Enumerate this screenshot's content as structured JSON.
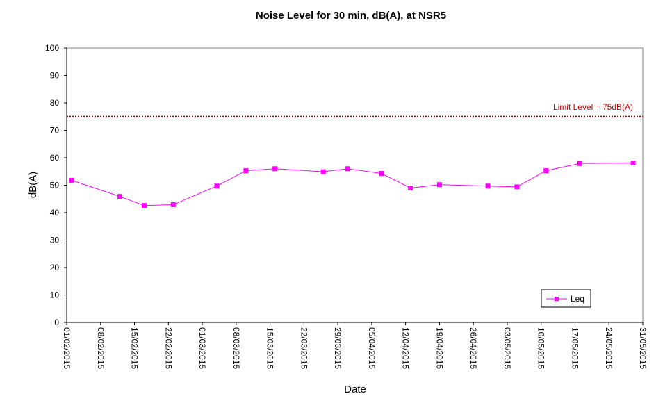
{
  "chart_data": {
    "type": "line",
    "title": "Noise Level for 30 min, dB(A), at NSR5",
    "xlabel": "Date",
    "ylabel": "dB(A)",
    "ylim": [
      0,
      100
    ],
    "yticks": [
      0,
      10,
      20,
      30,
      40,
      50,
      60,
      70,
      80,
      90,
      100
    ],
    "xlim": [
      "01/02/2015",
      "31/05/2015"
    ],
    "xticks": [
      "01/02/2015",
      "08/02/2015",
      "15/02/2015",
      "22/02/2015",
      "01/03/2015",
      "08/03/2015",
      "15/03/2015",
      "22/03/2015",
      "29/03/2015",
      "05/04/2015",
      "12/04/2015",
      "19/04/2015",
      "26/04/2015",
      "03/05/2015",
      "10/05/2015",
      "17/05/2015",
      "24/05/2015",
      "31/05/2015"
    ],
    "grid": false,
    "legend_position": "bottom-right",
    "series": [
      {
        "name": "Leq",
        "color": "#ff00ff",
        "marker": "square",
        "points": [
          {
            "x": "02/02/2015",
            "y": 51.8
          },
          {
            "x": "12/02/2015",
            "y": 45.9
          },
          {
            "x": "17/02/2015",
            "y": 42.6
          },
          {
            "x": "23/02/2015",
            "y": 42.9
          },
          {
            "x": "04/03/2015",
            "y": 49.7
          },
          {
            "x": "10/03/2015",
            "y": 55.3
          },
          {
            "x": "16/03/2015",
            "y": 56.0
          },
          {
            "x": "26/03/2015",
            "y": 54.9
          },
          {
            "x": "31/03/2015",
            "y": 56.0
          },
          {
            "x": "07/04/2015",
            "y": 54.3
          },
          {
            "x": "13/04/2015",
            "y": 49.0
          },
          {
            "x": "19/04/2015",
            "y": 50.2
          },
          {
            "x": "29/04/2015",
            "y": 49.7
          },
          {
            "x": "05/05/2015",
            "y": 49.4
          },
          {
            "x": "11/05/2015",
            "y": 55.3
          },
          {
            "x": "18/05/2015",
            "y": 57.9
          },
          {
            "x": "29/05/2015",
            "y": 58.1
          }
        ]
      }
    ],
    "reference_lines": [
      {
        "y": 75,
        "label": "Limit Level  = 75dB(A)",
        "color": "#990000",
        "style": "dotted"
      }
    ]
  }
}
